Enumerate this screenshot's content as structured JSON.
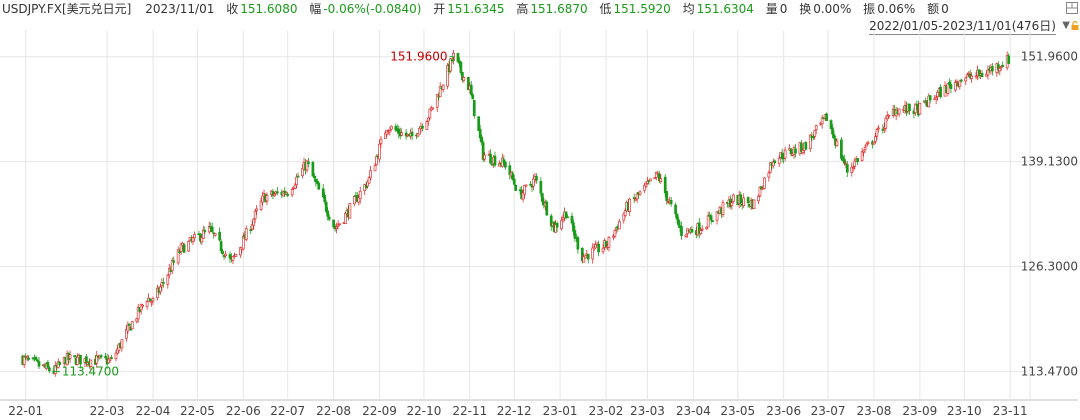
{
  "header": {
    "symbol": "USDJPY.FX[美元兑日元]",
    "date": "2023/11/01",
    "close_label": "收",
    "close_value": "151.6080",
    "change_label": "幅",
    "change_value": "-0.06%(-0.0840)",
    "open_label": "开",
    "open_value": "151.6345",
    "high_label": "高",
    "high_value": "151.6870",
    "low_label": "低",
    "low_value": "151.5920",
    "avg_label": "均",
    "avg_value": "151.6304",
    "volume_label": "量",
    "volume_value": "0",
    "turnover_label": "换",
    "turnover_value": "0.00%",
    "amplitude_label": "振",
    "amplitude_value": "0.06%",
    "amount_label": "额",
    "amount_value": "0"
  },
  "range_text": "2022/01/05-2023/11/01(476日)",
  "icons": {
    "panel": "panel-icon",
    "dropdown": "triangle-down-icon",
    "lock": "lock-icon"
  },
  "colors": {
    "up": "#e03030",
    "down": "#1a9a1a",
    "grid": "#e6e6e6",
    "axis": "#bfbfbf"
  },
  "chart_data": {
    "type": "candlestick",
    "x_label": "",
    "y_label": "",
    "ylim": [
      110.0,
      154.0
    ],
    "y_ticks": [
      "151.9600",
      "139.1300",
      "126.3000",
      "113.4700"
    ],
    "y_tick_values": [
      151.96,
      139.13,
      126.3,
      113.47
    ],
    "x_ticks": [
      "22-01",
      "22-03",
      "22-04",
      "22-05",
      "22-06",
      "22-07",
      "22-08",
      "22-09",
      "22-10",
      "22-11",
      "22-12",
      "23-01",
      "23-02",
      "23-03",
      "23-04",
      "23-05",
      "23-06",
      "23-07",
      "23-08",
      "23-09",
      "23-10",
      "23-11"
    ],
    "grid": true,
    "max_annotation": {
      "label": "151.9600",
      "value": 151.96,
      "date": "2022-10-21"
    },
    "min_annotation": {
      "label": "113.4700",
      "value": 113.47,
      "date": "2022-01-24"
    },
    "series": [
      {
        "date": "2022-01",
        "value": 115.2
      },
      {
        "date": "2022-01-24",
        "value": 113.47
      },
      {
        "date": "2022-02",
        "value": 115.0
      },
      {
        "date": "2022-03-04",
        "value": 114.8
      },
      {
        "date": "2022-03-15",
        "value": 118.5
      },
      {
        "date": "2022-03-28",
        "value": 122.5
      },
      {
        "date": "2022-04",
        "value": 122.0
      },
      {
        "date": "2022-04-20",
        "value": 128.5
      },
      {
        "date": "2022-05-09",
        "value": 130.8
      },
      {
        "date": "2022-05-24",
        "value": 126.8
      },
      {
        "date": "2022-06-01",
        "value": 129.5
      },
      {
        "date": "2022-06-15",
        "value": 134.8
      },
      {
        "date": "2022-07-01",
        "value": 135.5
      },
      {
        "date": "2022-07-14",
        "value": 138.9
      },
      {
        "date": "2022-08-02",
        "value": 131.0
      },
      {
        "date": "2022-08-10",
        "value": 132.8
      },
      {
        "date": "2022-08-25",
        "value": 137.0
      },
      {
        "date": "2022-09-06",
        "value": 143.5
      },
      {
        "date": "2022-09-22",
        "value": 142.0
      },
      {
        "date": "2022-10-05",
        "value": 145.0
      },
      {
        "date": "2022-10-21",
        "value": 151.96
      },
      {
        "date": "2022-11-01",
        "value": 148.0
      },
      {
        "date": "2022-11-10",
        "value": 140.0
      },
      {
        "date": "2022-11-25",
        "value": 138.8
      },
      {
        "date": "2022-12-05",
        "value": 135.0
      },
      {
        "date": "2022-12-15",
        "value": 137.0
      },
      {
        "date": "2022-12-28",
        "value": 131.0
      },
      {
        "date": "2023-01-05",
        "value": 133.0
      },
      {
        "date": "2023-01-16",
        "value": 127.5
      },
      {
        "date": "2023-02-02",
        "value": 129.0
      },
      {
        "date": "2023-02-15",
        "value": 133.5
      },
      {
        "date": "2023-03-08",
        "value": 137.5
      },
      {
        "date": "2023-03-24",
        "value": 130.5
      },
      {
        "date": "2023-04-05",
        "value": 131.0
      },
      {
        "date": "2023-04-28",
        "value": 134.5
      },
      {
        "date": "2023-05-12",
        "value": 134.0
      },
      {
        "date": "2023-05-25",
        "value": 139.5
      },
      {
        "date": "2023-06-15",
        "value": 141.0
      },
      {
        "date": "2023-06-30",
        "value": 144.5
      },
      {
        "date": "2023-07-14",
        "value": 138.0
      },
      {
        "date": "2023-07-28",
        "value": 141.0
      },
      {
        "date": "2023-08-15",
        "value": 145.5
      },
      {
        "date": "2023-08-31",
        "value": 145.5
      },
      {
        "date": "2023-09-14",
        "value": 147.5
      },
      {
        "date": "2023-09-29",
        "value": 149.3
      },
      {
        "date": "2023-10-13",
        "value": 149.8
      },
      {
        "date": "2023-10-31",
        "value": 151.6
      },
      {
        "date": "2023-11-01",
        "value": 151.608
      }
    ]
  }
}
